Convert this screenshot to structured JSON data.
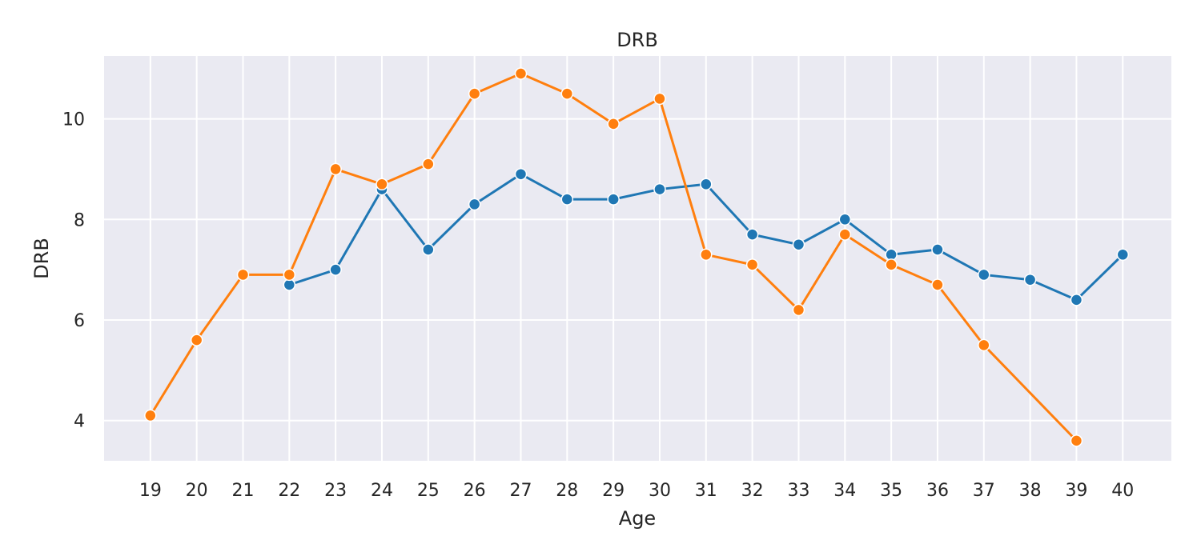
{
  "chart_data": {
    "type": "line",
    "title": "DRB",
    "xlabel": "Age",
    "ylabel": "DRB",
    "x": [
      19,
      20,
      21,
      22,
      23,
      24,
      25,
      26,
      27,
      28,
      29,
      30,
      31,
      32,
      33,
      34,
      35,
      36,
      37,
      38,
      39,
      40
    ],
    "x_ticks": [
      "19",
      "20",
      "21",
      "22",
      "23",
      "24",
      "25",
      "26",
      "27",
      "28",
      "29",
      "30",
      "31",
      "32",
      "33",
      "34",
      "35",
      "36",
      "37",
      "38",
      "39",
      "40"
    ],
    "y_ticks": [
      "4",
      "6",
      "8",
      "10"
    ],
    "ylim": [
      3.2,
      11.25
    ],
    "xlim": [
      18,
      41.05
    ],
    "grid": true,
    "background": "#eaeaf2",
    "series": [
      {
        "color": "#1f77b4",
        "values": [
          null,
          null,
          null,
          6.7,
          7.0,
          8.6,
          7.4,
          8.3,
          8.9,
          8.4,
          8.4,
          8.6,
          8.7,
          7.7,
          7.5,
          8.0,
          7.3,
          7.4,
          6.9,
          6.8,
          6.4,
          7.3
        ]
      },
      {
        "color": "#ff7f0e",
        "values": [
          4.1,
          5.6,
          6.9,
          6.9,
          9.0,
          8.7,
          9.1,
          10.5,
          10.9,
          10.5,
          9.9,
          10.4,
          7.3,
          7.1,
          6.2,
          7.7,
          7.1,
          6.7,
          5.5,
          null,
          3.6,
          null
        ]
      }
    ]
  }
}
